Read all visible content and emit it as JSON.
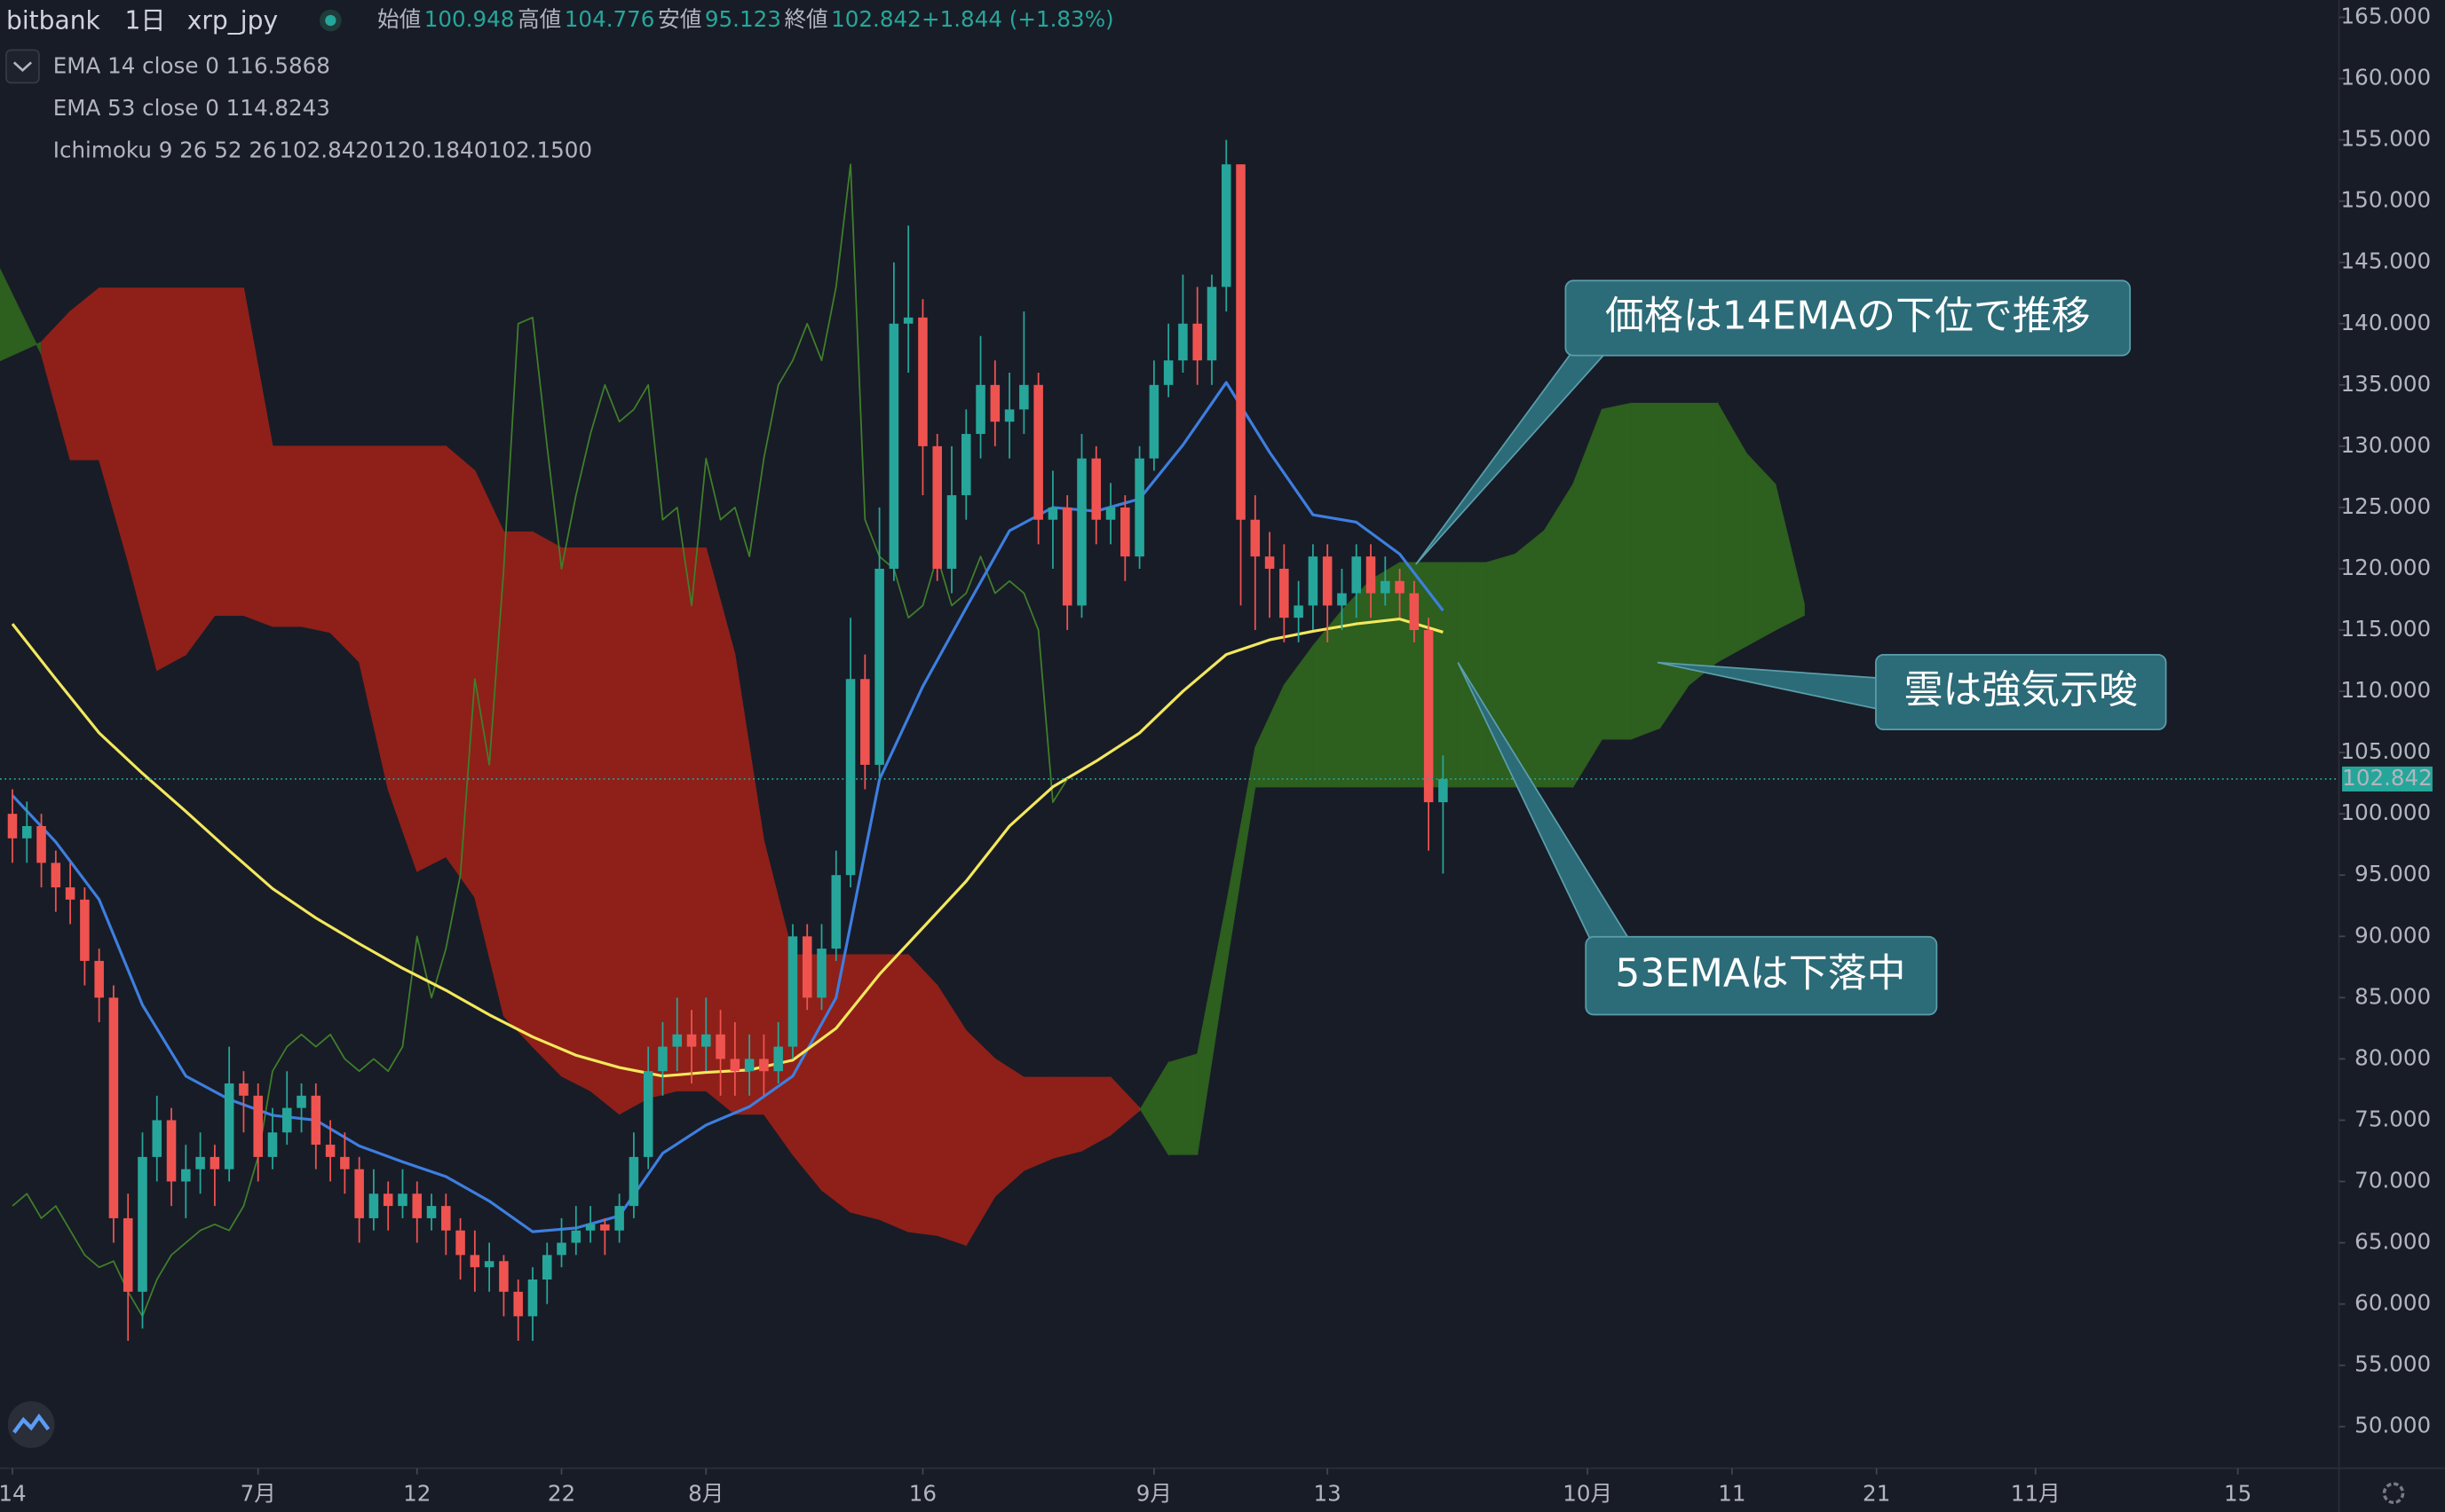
{
  "header": {
    "exchange": "bitbank",
    "interval": "1日",
    "symbol": "xrp_jpy",
    "open_label": "始値",
    "open": 100.948,
    "high_label": "高値",
    "high": 104.776,
    "low_label": "安値",
    "low": 95.123,
    "close_label": "終値",
    "close": 102.842,
    "change": "+1.844 (+1.83%)"
  },
  "chart_data": {
    "type": "candlestick",
    "xlim": [
      -0.86,
      161
    ],
    "xticks": [
      {
        "value": 0,
        "label": "14"
      },
      {
        "value": 17,
        "label": "7月"
      },
      {
        "value": 28,
        "label": "12"
      },
      {
        "value": 38,
        "label": "22"
      },
      {
        "value": 48,
        "label": "8月"
      },
      {
        "value": 63,
        "label": "16"
      },
      {
        "value": 79,
        "label": "9月"
      },
      {
        "value": 91,
        "label": "13"
      },
      {
        "value": 109,
        "label": "10月"
      },
      {
        "value": 119,
        "label": "11"
      },
      {
        "value": 129,
        "label": "21"
      },
      {
        "value": 140,
        "label": "11月"
      },
      {
        "value": 154,
        "label": "15"
      }
    ],
    "ylim": [
      46.6,
      166.4
    ],
    "yticks": [
      {
        "value": 50,
        "label": "50.000"
      },
      {
        "value": 55,
        "label": "55.000"
      },
      {
        "value": 60,
        "label": "60.000"
      },
      {
        "value": 65,
        "label": "65.000"
      },
      {
        "value": 70,
        "label": "70.000"
      },
      {
        "value": 75,
        "label": "75.000"
      },
      {
        "value": 80,
        "label": "80.000"
      },
      {
        "value": 85,
        "label": "85.000"
      },
      {
        "value": 90,
        "label": "90.000"
      },
      {
        "value": 95,
        "label": "95.000"
      },
      {
        "value": 100,
        "label": "100.000"
      },
      {
        "value": 105,
        "label": "105.000"
      },
      {
        "value": 110,
        "label": "110.000"
      },
      {
        "value": 115,
        "label": "115.000"
      },
      {
        "value": 120,
        "label": "120.000"
      },
      {
        "value": 125,
        "label": "125.000"
      },
      {
        "value": 130,
        "label": "130.000"
      },
      {
        "value": 135,
        "label": "135.000"
      },
      {
        "value": 140,
        "label": "140.000"
      },
      {
        "value": 145,
        "label": "145.000"
      },
      {
        "value": 150,
        "label": "150.000"
      },
      {
        "value": 155,
        "label": "155.000"
      },
      {
        "value": 160,
        "label": "160.000"
      },
      {
        "value": 165,
        "label": "165.000"
      }
    ],
    "up_color": "#26a69a",
    "down_color": "#ef5350",
    "x": [
      0,
      1,
      2,
      3,
      4,
      5,
      6,
      7,
      8,
      9,
      10,
      11,
      12,
      13,
      14,
      15,
      16,
      17,
      18,
      19,
      20,
      21,
      22,
      23,
      24,
      25,
      26,
      27,
      28,
      29,
      30,
      31,
      32,
      33,
      34,
      35,
      36,
      37,
      38,
      39,
      40,
      41,
      42,
      43,
      44,
      45,
      46,
      47,
      48,
      49,
      50,
      51,
      52,
      53,
      54,
      55,
      56,
      57,
      58,
      59,
      60,
      61,
      62,
      63,
      64,
      65,
      66,
      67,
      68,
      69,
      70,
      71,
      72,
      73,
      74,
      75,
      76,
      77,
      78,
      79,
      80,
      81,
      82,
      83,
      84,
      85,
      86,
      87,
      88,
      89,
      90,
      91,
      92,
      93,
      94,
      95,
      96,
      97,
      98,
      99
    ],
    "open": [
      100,
      98,
      99,
      96,
      94,
      93,
      88,
      85,
      67,
      61,
      72,
      75,
      70,
      71,
      72,
      71,
      78,
      77,
      72,
      74,
      76,
      77,
      73,
      72,
      71,
      67,
      69,
      68,
      69,
      67,
      68,
      66,
      64,
      63,
      63.5,
      61,
      59,
      62,
      64,
      65,
      66,
      66.5,
      66,
      68,
      72,
      79,
      81,
      82,
      81,
      82,
      80,
      79,
      80,
      79,
      81,
      90,
      85,
      89,
      95,
      111,
      104,
      120,
      140,
      140.5,
      130,
      120,
      126,
      131,
      135,
      132,
      133,
      135,
      124,
      125,
      117,
      129,
      124,
      125,
      121,
      129,
      135,
      137,
      140,
      137,
      143,
      153,
      124,
      121,
      120,
      116,
      117,
      121,
      117,
      118,
      121,
      118,
      119,
      118,
      115,
      100.948
    ],
    "high": [
      102,
      101,
      100,
      97,
      96,
      94,
      89,
      86,
      69,
      74,
      77,
      76,
      73,
      74,
      73,
      81,
      79,
      78,
      76,
      79,
      78,
      78,
      75,
      74,
      72,
      71,
      70,
      71,
      70,
      69,
      69,
      67,
      66,
      65,
      64,
      62,
      63,
      65,
      67,
      68,
      68,
      67,
      69,
      74,
      81,
      83,
      85,
      84,
      85,
      84,
      83,
      82,
      82,
      83,
      91,
      91,
      91,
      97,
      116,
      113,
      125,
      145,
      148,
      142,
      131,
      130,
      133,
      139,
      137,
      136,
      141,
      136,
      128,
      126,
      131,
      130,
      127,
      126,
      130,
      137,
      140,
      144,
      143,
      144,
      155,
      153,
      126,
      123,
      122,
      119,
      122,
      122,
      120,
      122,
      122,
      121,
      120,
      119,
      116,
      104.776
    ],
    "low": [
      96,
      96,
      94,
      92,
      91,
      86,
      83,
      65,
      57,
      58,
      70,
      68,
      67,
      69,
      68,
      70,
      74,
      70,
      71,
      73,
      74,
      71,
      70,
      69,
      65,
      66,
      66,
      67,
      65,
      66,
      64,
      62,
      61,
      61,
      59,
      57,
      57,
      60,
      63,
      64,
      65,
      64,
      65,
      67,
      71,
      77,
      79,
      78,
      79,
      77,
      77,
      77,
      77,
      78,
      80,
      84,
      84,
      88,
      94,
      102,
      103,
      119,
      136,
      126,
      119,
      118,
      124,
      129,
      130,
      129,
      131,
      122,
      120,
      115,
      116,
      122,
      122,
      119,
      120,
      128,
      134,
      136,
      135,
      135,
      141,
      117,
      115,
      116,
      114,
      114,
      115,
      114,
      115,
      116,
      116,
      117,
      116,
      114,
      97,
      95.123
    ],
    "close": [
      98,
      99,
      96,
      94,
      93,
      88,
      85,
      67,
      61,
      72,
      75,
      70,
      71,
      72,
      71,
      78,
      77,
      72,
      74,
      76,
      77,
      73,
      72,
      71,
      67,
      69,
      68,
      69,
      67,
      68,
      66,
      64,
      63,
      63.5,
      61,
      59,
      62,
      64,
      65,
      66,
      66.5,
      66,
      68,
      72,
      79,
      81,
      82,
      81,
      82,
      80,
      79,
      80,
      79,
      81,
      90,
      85,
      89,
      95,
      111,
      104,
      120,
      140,
      140.5,
      130,
      120,
      126,
      131,
      135,
      132,
      133,
      135,
      124,
      125,
      117,
      129,
      124,
      125,
      121,
      129,
      135,
      137,
      140,
      137,
      143,
      153,
      124,
      121,
      120,
      116,
      117,
      121,
      117,
      118,
      121,
      118,
      119,
      118,
      115,
      100.948,
      102.842
    ],
    "overlays": [
      {
        "name": "EMA 14 close 0",
        "color": "#3d7fe0",
        "value_color": "#4a90e2",
        "x": [
          0,
          3,
          6,
          9,
          12,
          15,
          18,
          21,
          24,
          27,
          30,
          33,
          36,
          39,
          42,
          45,
          48,
          51,
          54,
          57,
          60,
          63,
          66,
          69,
          72,
          75,
          78,
          81,
          84,
          87,
          90,
          93,
          96,
          99
        ],
        "values": [
          101.5,
          97.7,
          93,
          84.4,
          78.6,
          76.7,
          75.4,
          75,
          72.9,
          71.6,
          70.4,
          68.4,
          65.9,
          66.2,
          67.2,
          72.3,
          74.6,
          76.1,
          78.6,
          85,
          102.8,
          110.4,
          116.8,
          123.1,
          125,
          124.7,
          125.7,
          130.1,
          135.2,
          129.5,
          124.4,
          123.8,
          121.2,
          116.5868
        ]
      },
      {
        "name": "EMA 53 close 0",
        "color": "#f3e85c",
        "value_color": "#f3e85c",
        "x": [
          0,
          3,
          6,
          9,
          12,
          15,
          18,
          21,
          24,
          27,
          30,
          33,
          36,
          39,
          42,
          45,
          48,
          51,
          54,
          57,
          60,
          63,
          66,
          69,
          72,
          75,
          78,
          81,
          84,
          87,
          90,
          93,
          96,
          99
        ],
        "values": [
          115.5,
          111,
          106.6,
          103.3,
          100.2,
          97,
          93.9,
          91.5,
          89.4,
          87.4,
          85.6,
          83.6,
          81.8,
          80.3,
          79.3,
          78.6,
          78.9,
          79.1,
          79.9,
          82.5,
          86.9,
          90.7,
          94.5,
          99,
          102.2,
          104.3,
          106.6,
          110,
          113,
          114.2,
          114.9,
          115.5,
          115.9,
          114.8243
        ]
      }
    ],
    "ichimoku": {
      "name": "Ichimoku 9 26 52 26",
      "readouts": [
        "102.8420",
        "120.1840",
        "102.1500"
      ],
      "readout_colors": [
        "#4caf50",
        "#4caf50",
        "#f23645"
      ],
      "bull_color": "#2d5f1f",
      "bear_color": "#8e2019",
      "x": [
        -1,
        2,
        4,
        6,
        8,
        10,
        12,
        14,
        16,
        18,
        20,
        22,
        24,
        26,
        28,
        30,
        32,
        34,
        36,
        38,
        40,
        42,
        44,
        46,
        48,
        50,
        52,
        54,
        56,
        58,
        60,
        62,
        64,
        66,
        68,
        70,
        72,
        74,
        76,
        78,
        80,
        82,
        84,
        86,
        88,
        90,
        92,
        94,
        96,
        98,
        100,
        102,
        104,
        106,
        108,
        110,
        112,
        114,
        116,
        118,
        120,
        122,
        124
      ],
      "span_a": [
        144.8,
        137.5,
        128.9,
        128.9,
        120.6,
        111.7,
        113,
        116.2,
        116.2,
        115.3,
        115.3,
        114.8,
        112.4,
        102,
        95.3,
        96.5,
        93.2,
        83.5,
        81,
        78.6,
        77.4,
        75.5,
        76.8,
        77.4,
        77.4,
        75.5,
        75.5,
        72.2,
        69.3,
        67.5,
        66.9,
        65.9,
        65.6,
        64.8,
        68.8,
        70.9,
        71.9,
        72.5,
        73.8,
        75.8,
        79.7,
        80.4,
        92.6,
        105.4,
        110.5,
        113.7,
        116.6,
        119.1,
        120.5,
        120.5,
        120.5,
        120.5,
        121.2,
        123.1,
        126.9,
        133,
        133.5,
        133.5,
        133.5,
        133.5,
        129.4,
        126.9,
        117.1
      ],
      "span_b": [
        136.9,
        138.5,
        141,
        142.9,
        142.9,
        142.9,
        142.9,
        142.9,
        142.9,
        130,
        130,
        130,
        130,
        130,
        130,
        130,
        128,
        123,
        123,
        121.7,
        121.7,
        121.7,
        121.7,
        121.7,
        121.7,
        113,
        97.8,
        88.5,
        88.5,
        88.5,
        88.5,
        88.5,
        86,
        82.3,
        80,
        78.5,
        78.5,
        78.5,
        78.5,
        76,
        72.2,
        72.2,
        87.5,
        102.2,
        102.2,
        102.2,
        102.2,
        102.2,
        102.2,
        102.2,
        102.2,
        102.2,
        102.2,
        102.2,
        102.2,
        106.1,
        106.1,
        107,
        110.5,
        112.4,
        113.7,
        115,
        116.2
      ],
      "lagging_color": "#3f7f2a",
      "lagging_x": [
        0,
        1,
        2,
        3,
        4,
        5,
        6,
        7,
        8,
        9,
        10,
        11,
        12,
        13,
        14,
        15,
        16,
        17,
        18,
        19,
        20,
        21,
        22,
        23,
        24,
        25,
        26,
        27,
        28,
        29,
        30,
        31,
        32,
        33,
        34,
        35,
        36,
        37,
        38,
        39,
        40,
        41,
        42,
        43,
        44,
        45,
        46,
        47,
        48,
        49,
        50,
        51,
        52,
        53,
        54,
        55,
        56,
        57,
        58,
        59,
        60,
        61,
        62,
        63,
        64,
        65,
        66,
        67,
        68,
        69,
        70,
        71,
        72,
        73
      ],
      "lagging": [
        68,
        69,
        67,
        68,
        66,
        64,
        63,
        63.5,
        61,
        59,
        62,
        64,
        65,
        66,
        66.5,
        66,
        68,
        72,
        79,
        81,
        82,
        81,
        82,
        80,
        79,
        80,
        79,
        81,
        90,
        85,
        89,
        95,
        111,
        104,
        120,
        140,
        140.5,
        130,
        120,
        126,
        131,
        135,
        132,
        133,
        135,
        124,
        125,
        117,
        129,
        124,
        125,
        121,
        129,
        135,
        137,
        140,
        137,
        143,
        153,
        124,
        121,
        120,
        116,
        117,
        121,
        117,
        118,
        121,
        118,
        119,
        118,
        115,
        100.948,
        102.842
      ]
    },
    "annotations": [
      "価格は14EMAの下位で推移",
      "雲は強気示唆",
      "53EMAは下落中"
    ]
  }
}
